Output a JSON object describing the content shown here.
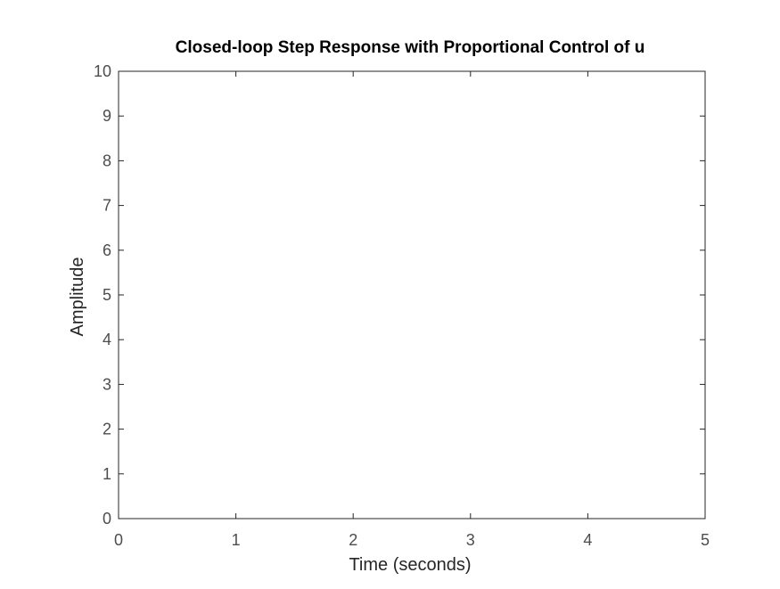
{
  "chart_data": {
    "type": "line",
    "title": "Closed-loop Step Response with Proportional Control of u",
    "xlabel": "Time (seconds)",
    "ylabel": "Amplitude",
    "xlim": [
      0,
      5
    ],
    "ylim": [
      0,
      10
    ],
    "xticks": [
      "0",
      "1",
      "2",
      "3",
      "4",
      "5"
    ],
    "yticks": [
      "0",
      "1",
      "2",
      "3",
      "4",
      "5",
      "6",
      "7",
      "8",
      "9",
      "10"
    ],
    "series": [],
    "grid": false,
    "legend": "none",
    "colors": {
      "axis": "#262626",
      "tick_text": "#4d4d4d",
      "title": "#000000",
      "background": "#ffffff"
    }
  }
}
